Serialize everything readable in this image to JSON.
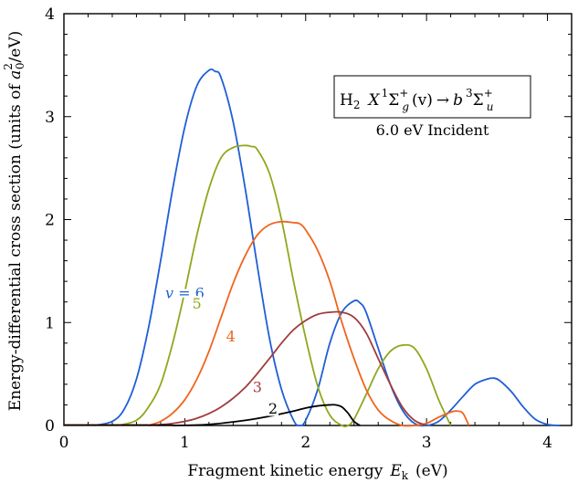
{
  "chart_data": {
    "type": "line",
    "xlabel": "Fragment kinetic energy",
    "xlabel_symbol": "E",
    "xlabel_sub": "k",
    "xlabel_unit": "(eV)",
    "ylabel_prefix": "Energy-differential cross section (units of ",
    "ylabel_sym": "a",
    "ylabel_sub": "0",
    "ylabel_sup": "2",
    "ylabel_suffix": "/eV)",
    "xlim": [
      0,
      4.2
    ],
    "ylim": [
      0,
      4
    ],
    "xticks": [
      0,
      1,
      2,
      3,
      4
    ],
    "yticks": [
      0,
      1,
      2,
      3,
      4
    ],
    "grid": false,
    "legend_box": {
      "molecule": "H",
      "molecule_sub": "2",
      "state_x": "X",
      "sup1": "1",
      "sigma": "Σ",
      "sub_g": "g",
      "plus": "+",
      "vib": "(v)",
      "arrow": "→",
      "state_b": "b",
      "sup3": "3",
      "sub_u": "u",
      "incident": "6.0 eV Incident"
    },
    "series": [
      {
        "name": "v = 6",
        "label": "v = 6",
        "color": "#1f5fd6",
        "label_at": [
          1.0,
          1.28
        ],
        "x": [
          0.25,
          0.4,
          0.5,
          0.6,
          0.7,
          0.8,
          0.9,
          1.0,
          1.1,
          1.2,
          1.25,
          1.3,
          1.4,
          1.5,
          1.6,
          1.7,
          1.8,
          1.9,
          1.95,
          2.0,
          2.1,
          2.2,
          2.3,
          2.4,
          2.45,
          2.5,
          2.6,
          2.7,
          2.8,
          2.9,
          3.0,
          3.1,
          3.2,
          3.3,
          3.4,
          3.5,
          3.55,
          3.6,
          3.7,
          3.8,
          3.9,
          4.0,
          4.1
        ],
        "y": [
          0.0,
          0.04,
          0.16,
          0.45,
          0.95,
          1.6,
          2.3,
          2.9,
          3.3,
          3.45,
          3.44,
          3.38,
          2.95,
          2.3,
          1.55,
          0.85,
          0.35,
          0.05,
          0.0,
          0.05,
          0.35,
          0.8,
          1.1,
          1.21,
          1.19,
          1.1,
          0.75,
          0.4,
          0.15,
          0.02,
          0.0,
          0.04,
          0.15,
          0.28,
          0.4,
          0.45,
          0.46,
          0.44,
          0.33,
          0.18,
          0.06,
          0.01,
          0.0
        ]
      },
      {
        "name": "5",
        "label": "5",
        "color": "#8fa81d",
        "label_at": [
          1.1,
          1.18
        ],
        "x": [
          0.45,
          0.6,
          0.7,
          0.8,
          0.9,
          1.0,
          1.1,
          1.2,
          1.3,
          1.4,
          1.5,
          1.55,
          1.6,
          1.7,
          1.8,
          1.9,
          2.0,
          2.1,
          2.2,
          2.3,
          2.35,
          2.4,
          2.5,
          2.6,
          2.7,
          2.8,
          2.9,
          3.0,
          3.1,
          3.2
        ],
        "y": [
          0.0,
          0.05,
          0.18,
          0.4,
          0.8,
          1.3,
          1.85,
          2.3,
          2.6,
          2.7,
          2.72,
          2.71,
          2.68,
          2.45,
          2.0,
          1.4,
          0.85,
          0.38,
          0.1,
          0.0,
          0.0,
          0.06,
          0.3,
          0.55,
          0.72,
          0.78,
          0.75,
          0.55,
          0.25,
          0.0
        ]
      },
      {
        "name": "4",
        "label": "4",
        "color": "#f0641e",
        "label_at": [
          1.38,
          0.86
        ],
        "x": [
          0.7,
          0.8,
          0.9,
          1.0,
          1.1,
          1.2,
          1.3,
          1.4,
          1.5,
          1.6,
          1.7,
          1.8,
          1.9,
          1.95,
          2.0,
          2.1,
          2.2,
          2.3,
          2.4,
          2.5,
          2.6,
          2.7,
          2.8,
          2.9,
          3.0,
          3.1,
          3.2,
          3.25,
          3.3,
          3.35
        ],
        "y": [
          0.0,
          0.04,
          0.12,
          0.25,
          0.45,
          0.72,
          1.05,
          1.38,
          1.65,
          1.85,
          1.95,
          1.98,
          1.97,
          1.96,
          1.9,
          1.7,
          1.4,
          1.0,
          0.65,
          0.35,
          0.15,
          0.05,
          0.0,
          0.0,
          0.02,
          0.08,
          0.13,
          0.14,
          0.12,
          0.0
        ]
      },
      {
        "name": "3",
        "label": "3",
        "color": "#a03c3c",
        "label_at": [
          1.6,
          0.37
        ],
        "x": [
          0.7,
          0.9,
          1.1,
          1.3,
          1.5,
          1.7,
          1.8,
          1.9,
          2.0,
          2.1,
          2.2,
          2.3,
          2.4,
          2.5,
          2.6,
          2.7,
          2.8,
          2.9,
          3.0
        ],
        "y": [
          0.0,
          0.02,
          0.07,
          0.18,
          0.37,
          0.65,
          0.8,
          0.93,
          1.02,
          1.08,
          1.1,
          1.1,
          1.05,
          0.9,
          0.65,
          0.4,
          0.18,
          0.05,
          0.0
        ]
      },
      {
        "name": "2",
        "label": "2",
        "color": "#000000",
        "label_at": [
          1.73,
          0.16
        ],
        "x": [
          0.9,
          1.2,
          1.5,
          1.7,
          1.9,
          2.0,
          2.1,
          2.2,
          2.25,
          2.3,
          2.35,
          2.4,
          2.45
        ],
        "y": [
          0.0,
          0.01,
          0.05,
          0.09,
          0.14,
          0.17,
          0.19,
          0.2,
          0.2,
          0.18,
          0.12,
          0.04,
          0.0
        ]
      }
    ]
  }
}
